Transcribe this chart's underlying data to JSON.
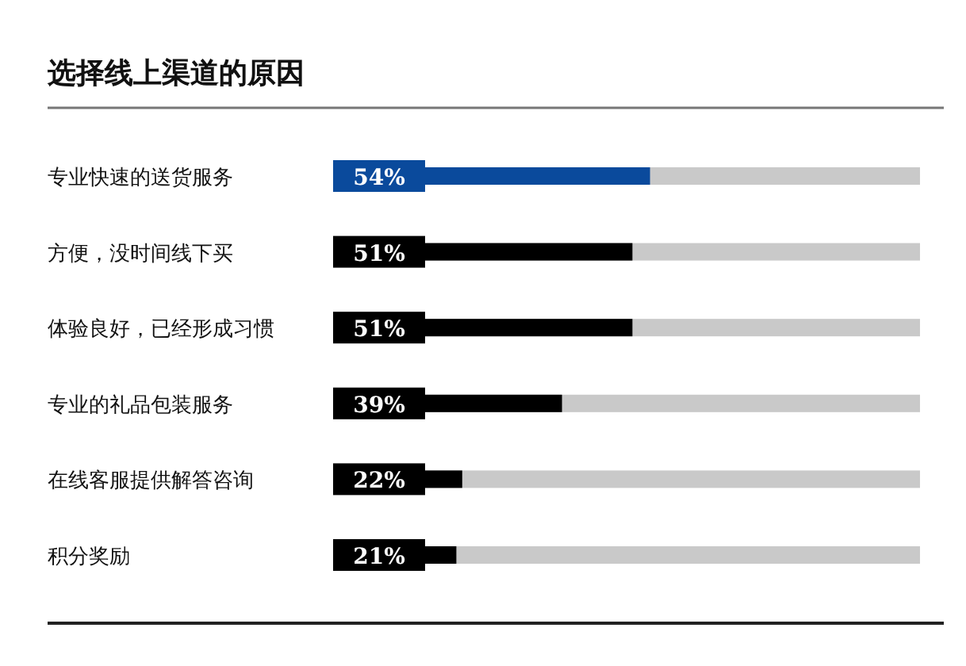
{
  "chart_data": {
    "type": "bar",
    "orientation": "horizontal",
    "title": "选择线上渠道的原因",
    "categories": [
      "专业快速的送货服务",
      "方便，没时间线下买",
      "体验良好，已经形成习惯",
      "专业的礼品包装服务",
      "在线客服提供解答咨询",
      "积分奖励"
    ],
    "values": [
      54,
      51,
      51,
      39,
      22,
      21
    ],
    "colors": [
      "#0a4a9c",
      "#000000",
      "#000000",
      "#000000",
      "#000000",
      "#000000"
    ],
    "value_labels": [
      "54%",
      "51%",
      "51%",
      "39%",
      "22%",
      "21%"
    ],
    "xlim": [
      0,
      100
    ]
  }
}
